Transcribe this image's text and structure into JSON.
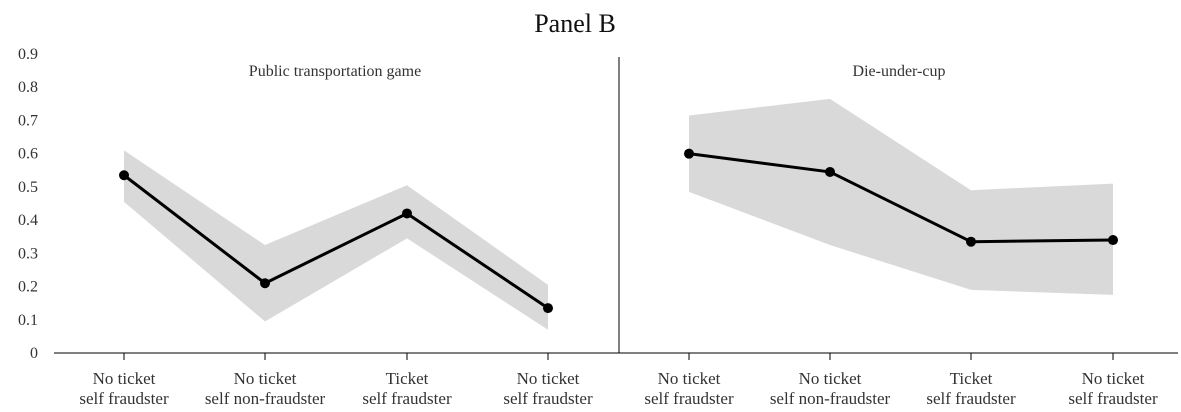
{
  "chart_data": {
    "type": "line",
    "title": "Panel B",
    "ylim": [
      0,
      0.9
    ],
    "yticks": [
      "0",
      "0.1",
      "0.2",
      "0.3",
      "0.4",
      "0.5",
      "0.6",
      "0.7",
      "0.8",
      "0.9"
    ],
    "grid": false,
    "legend": "none",
    "colors": {
      "line": "#000000",
      "band": "#d9d9d9",
      "axis": "#000000",
      "text": "#333333"
    },
    "panels": [
      {
        "label": "Public transportation game",
        "categories": [
          [
            "No ticket",
            "self fraudster"
          ],
          [
            "No ticket",
            "self non-fraudster"
          ],
          [
            "Ticket",
            "self fraudster"
          ],
          [
            "No ticket",
            "self fraudster"
          ]
        ],
        "values": [
          0.535,
          0.21,
          0.42,
          0.135
        ],
        "lower": [
          0.455,
          0.095,
          0.345,
          0.07
        ],
        "upper": [
          0.61,
          0.325,
          0.505,
          0.205
        ]
      },
      {
        "label": "Die-under-cup",
        "categories": [
          [
            "No ticket",
            "self fraudster"
          ],
          [
            "No ticket",
            "self non-fraudster"
          ],
          [
            "Ticket",
            "self fraudster"
          ],
          [
            "No ticket",
            "self fraudster"
          ]
        ],
        "values": [
          0.6,
          0.545,
          0.335,
          0.34
        ],
        "lower": [
          0.485,
          0.325,
          0.19,
          0.175
        ],
        "upper": [
          0.715,
          0.765,
          0.49,
          0.51
        ]
      }
    ]
  }
}
